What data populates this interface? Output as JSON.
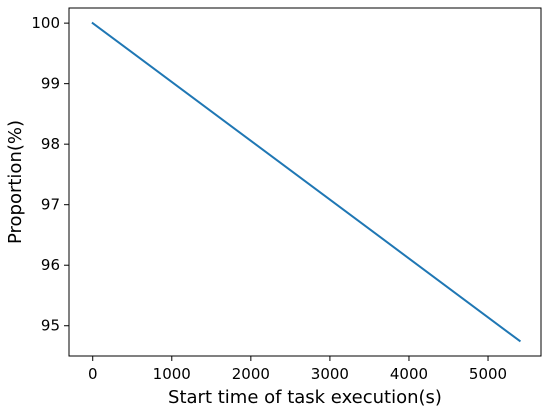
{
  "chart_data": {
    "type": "line",
    "title": "",
    "xlabel": "Start time of task execution(s)",
    "ylabel": "Proportion(%)",
    "xlim": [
      -300,
      5670
    ],
    "ylim": [
      94.5,
      100.25
    ],
    "x_ticks": [
      0,
      1000,
      2000,
      3000,
      4000,
      5000
    ],
    "y_ticks": [
      95,
      96,
      97,
      98,
      99,
      100
    ],
    "grid": false,
    "legend": "none",
    "series": [
      {
        "color": "#1f77b4",
        "x": [
          0,
          5400
        ],
        "y": [
          100,
          94.75
        ]
      }
    ]
  }
}
